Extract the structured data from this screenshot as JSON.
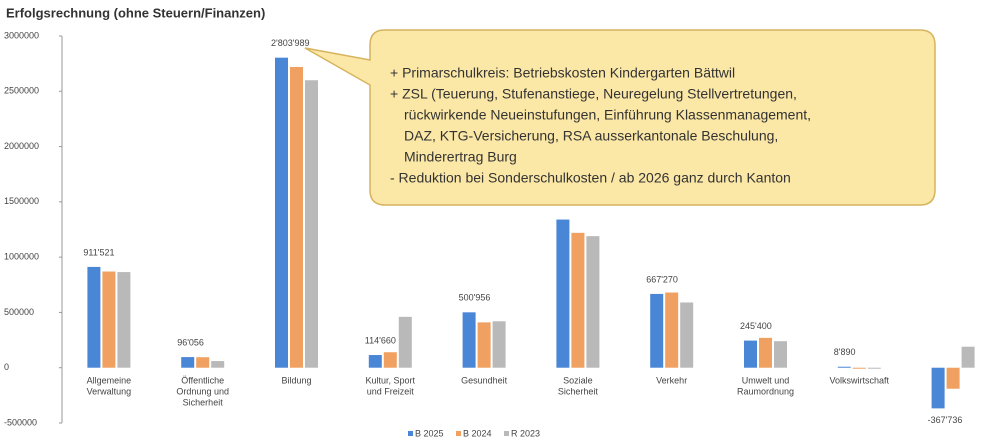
{
  "chart_data": {
    "type": "bar",
    "title": "Erfolgsrechnung (ohne Steuern/Finanzen)",
    "categories": [
      "Allgemeine Verwaltung",
      "Öffentliche Ordnung und Sicherheit",
      "Bildung",
      "Kultur, Sport und Freizeit",
      "Gesundheit",
      "Soziale Sicherheit",
      "Verkehr",
      "Umwelt und Raumordnung",
      "Volkswirtschaft",
      null
    ],
    "series": [
      {
        "name": "B 2025",
        "color": "#4a86d6",
        "values": [
          911521,
          96056,
          2803989,
          114660,
          500956,
          1340000,
          667270,
          245400,
          8890,
          -367736
        ],
        "value_labels": [
          "911'521",
          "96'056",
          "2'803'989",
          "114'660",
          "500'956",
          null,
          "667'270",
          "245'400",
          "8'890",
          "-367'736"
        ]
      },
      {
        "name": "B 2024",
        "color": "#f0a060",
        "values": [
          870000,
          95000,
          2720000,
          140000,
          410000,
          1220000,
          680000,
          270000,
          0,
          -190000
        ]
      },
      {
        "name": "R 2023",
        "color": "#b9b9b9",
        "values": [
          865000,
          60000,
          2600000,
          460000,
          420000,
          1190000,
          590000,
          240000,
          0,
          190000
        ]
      }
    ],
    "ylim": [
      -500000,
      3000000
    ],
    "yticks": [
      -500000,
      0,
      500000,
      1000000,
      1500000,
      2000000,
      2500000,
      3000000
    ],
    "legend": "bottom",
    "annotations": [
      "+ Primarschulkreis:  Betriebskosten Kindergarten Bättwil",
      "+ ZSL (Teuerung,  Stufenanstiege,  Neuregelung  Stellvertretungen,",
      "rückwirkende Neueinstufungen,  Einführung  Klassenmanagement,",
      "DAZ,  KTG-Versicherung,  RSA ausserkantonale Beschulung,",
      "Minderertrag  Burg",
      "-  Reduktion bei Sonderschulkosten   / ab 2026 ganz durch Kanton"
    ]
  }
}
